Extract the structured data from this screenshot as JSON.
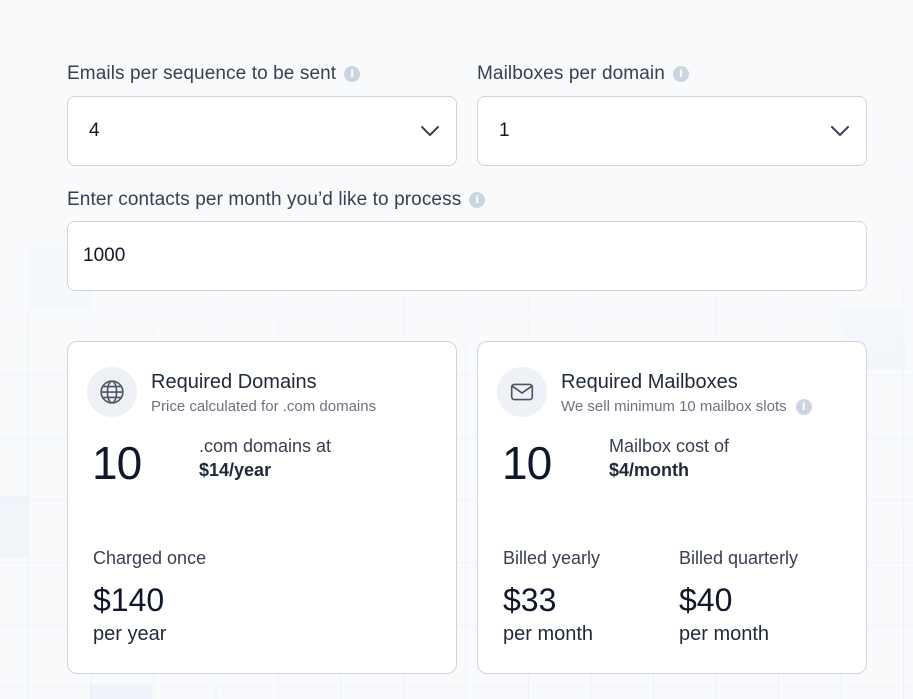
{
  "emails_per_sequence": {
    "label": "Emails per sequence to be sent",
    "value": "4"
  },
  "mailboxes_per_domain": {
    "label": "Mailboxes per domain",
    "value": "1"
  },
  "contacts_per_month": {
    "label": "Enter contacts per month you’d like to process",
    "value": "1000"
  },
  "domains_card": {
    "icon": "globe-icon",
    "title": "Required Domains",
    "subtitle": "Price calculated for .com domains",
    "count": "10",
    "cost_line1": ".com domains at",
    "cost_line2": "$14/year",
    "charge_label": "Charged once",
    "charge_value": "$140",
    "charge_unit": "per year"
  },
  "mailboxes_card": {
    "icon": "mail-icon",
    "title": "Required Mailboxes",
    "subtitle": "We sell minimum 10 mailbox slots",
    "count": "10",
    "cost_line1": "Mailbox cost of",
    "cost_line2": "$4/month",
    "yearly_label": "Billed yearly",
    "yearly_value": "$33",
    "yearly_unit": "per month",
    "quarterly_label": "Billed quarterly",
    "quarterly_value": "$40",
    "quarterly_unit": "per month"
  },
  "colors": {
    "background": "#f8fafc",
    "border": "#d1d5db",
    "info_icon": "#cbd5e1",
    "icon_circle": "#eef1f5"
  }
}
